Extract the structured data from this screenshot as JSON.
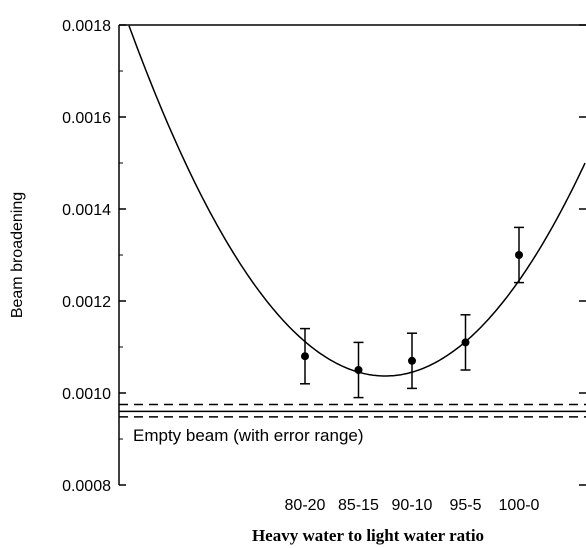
{
  "chart_data": {
    "type": "scatter",
    "title": "",
    "xlabel": "Heavy water to light water ratio",
    "ylabel": "Beam broadening",
    "categories": [
      "80-20",
      "85-15",
      "90-10",
      "95-5",
      "100-0"
    ],
    "ylim": [
      0.0008,
      0.0018
    ],
    "yticks": [
      "0.0008",
      "0.0010",
      "0.0012",
      "0.0014",
      "0.0016",
      "0.0018"
    ],
    "series": [
      {
        "values": [
          0.00108,
          0.00105,
          0.00107,
          0.00111,
          0.0013
        ],
        "error_low": [
          0.00102,
          0.00099,
          0.00101,
          0.00105,
          0.00124
        ],
        "error_high": [
          0.00114,
          0.00111,
          0.00113,
          0.00117,
          0.00136
        ]
      }
    ],
    "fit_curve": {
      "type": "quadratic",
      "vertex_category_position": 1.5,
      "vertex_value": 0.001037,
      "left_edge_value": 0.001735,
      "right_edge_value": 0.001575
    },
    "reference_band": {
      "label": "Empty beam (with error range)",
      "value": 0.00096,
      "low": 0.000948,
      "high": 0.000975
    },
    "grid": false,
    "legend": "none"
  }
}
